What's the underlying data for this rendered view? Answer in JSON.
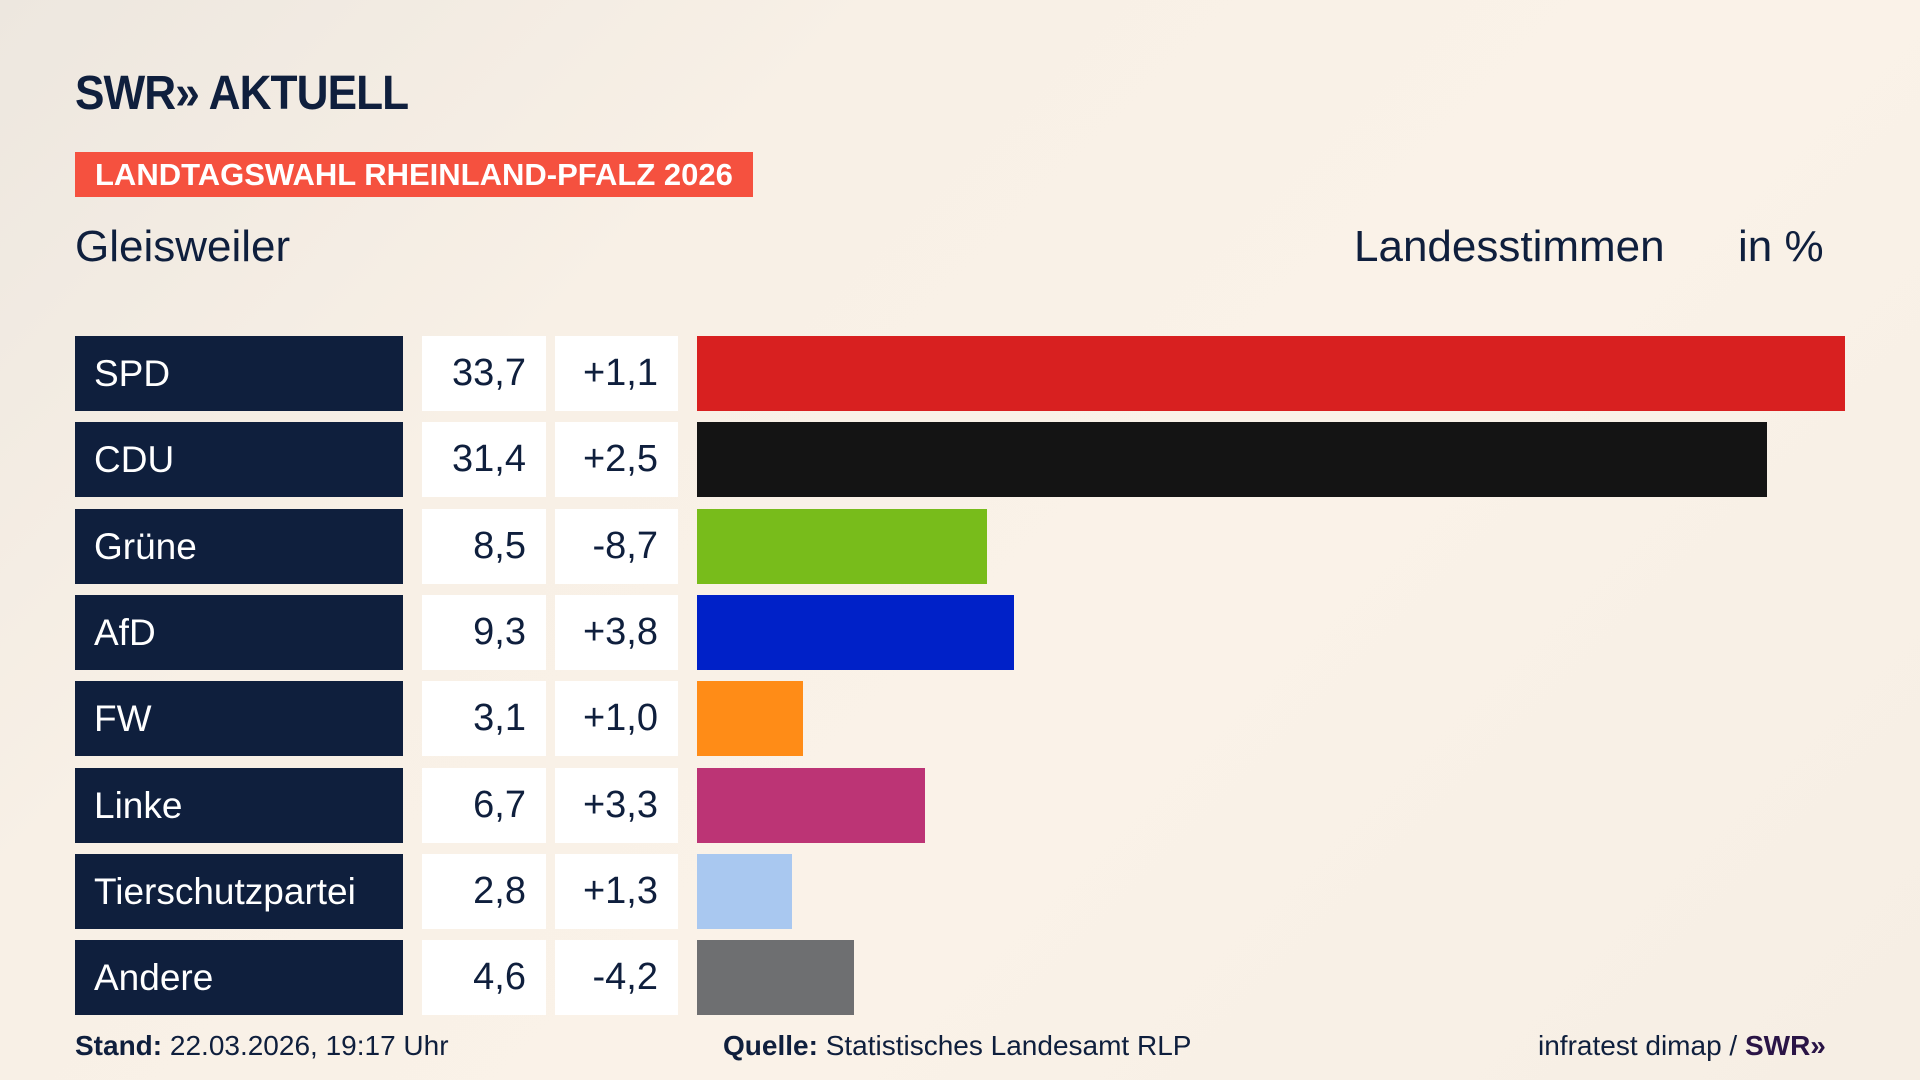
{
  "header": {
    "logo": "SWR» AKTUELL",
    "banner": "LANDTAGSWAHL RHEINLAND-PFALZ 2026",
    "place": "Gleisweiler",
    "vote_type": "Landesstimmen",
    "unit": "in %"
  },
  "chart_data": {
    "type": "bar",
    "orientation": "horizontal",
    "categories": [
      "SPD",
      "CDU",
      "Grüne",
      "AfD",
      "FW",
      "Linke",
      "Tierschutzpartei",
      "Andere"
    ],
    "values": [
      33.7,
      31.4,
      8.5,
      9.3,
      3.1,
      6.7,
      2.8,
      4.6
    ],
    "value_labels": [
      "33,7",
      "31,4",
      "8,5",
      "9,3",
      "3,1",
      "6,7",
      "2,8",
      "4,6"
    ],
    "diff_labels": [
      "+1,1",
      "+2,5",
      "-8,7",
      "+3,8",
      "+1,0",
      "+3,3",
      "+1,3",
      "-4,2"
    ],
    "diffs": [
      1.1,
      2.5,
      -8.7,
      3.8,
      1.0,
      3.3,
      1.3,
      -4.2
    ],
    "colors": [
      "#d82020",
      "#141414",
      "#78bc1b",
      "#0021c8",
      "#ff8c17",
      "#bc3475",
      "#a9c8f0",
      "#6e6f71"
    ],
    "grid": false
  },
  "footer": {
    "stand_label": "Stand:",
    "stand_value": " 22.03.2026, 19:17 Uhr",
    "source_label": "Quelle:",
    "source_value": " Statistisches Landesamt RLP",
    "credit": "infratest dimap / ",
    "credit_brand": "SWR»"
  }
}
